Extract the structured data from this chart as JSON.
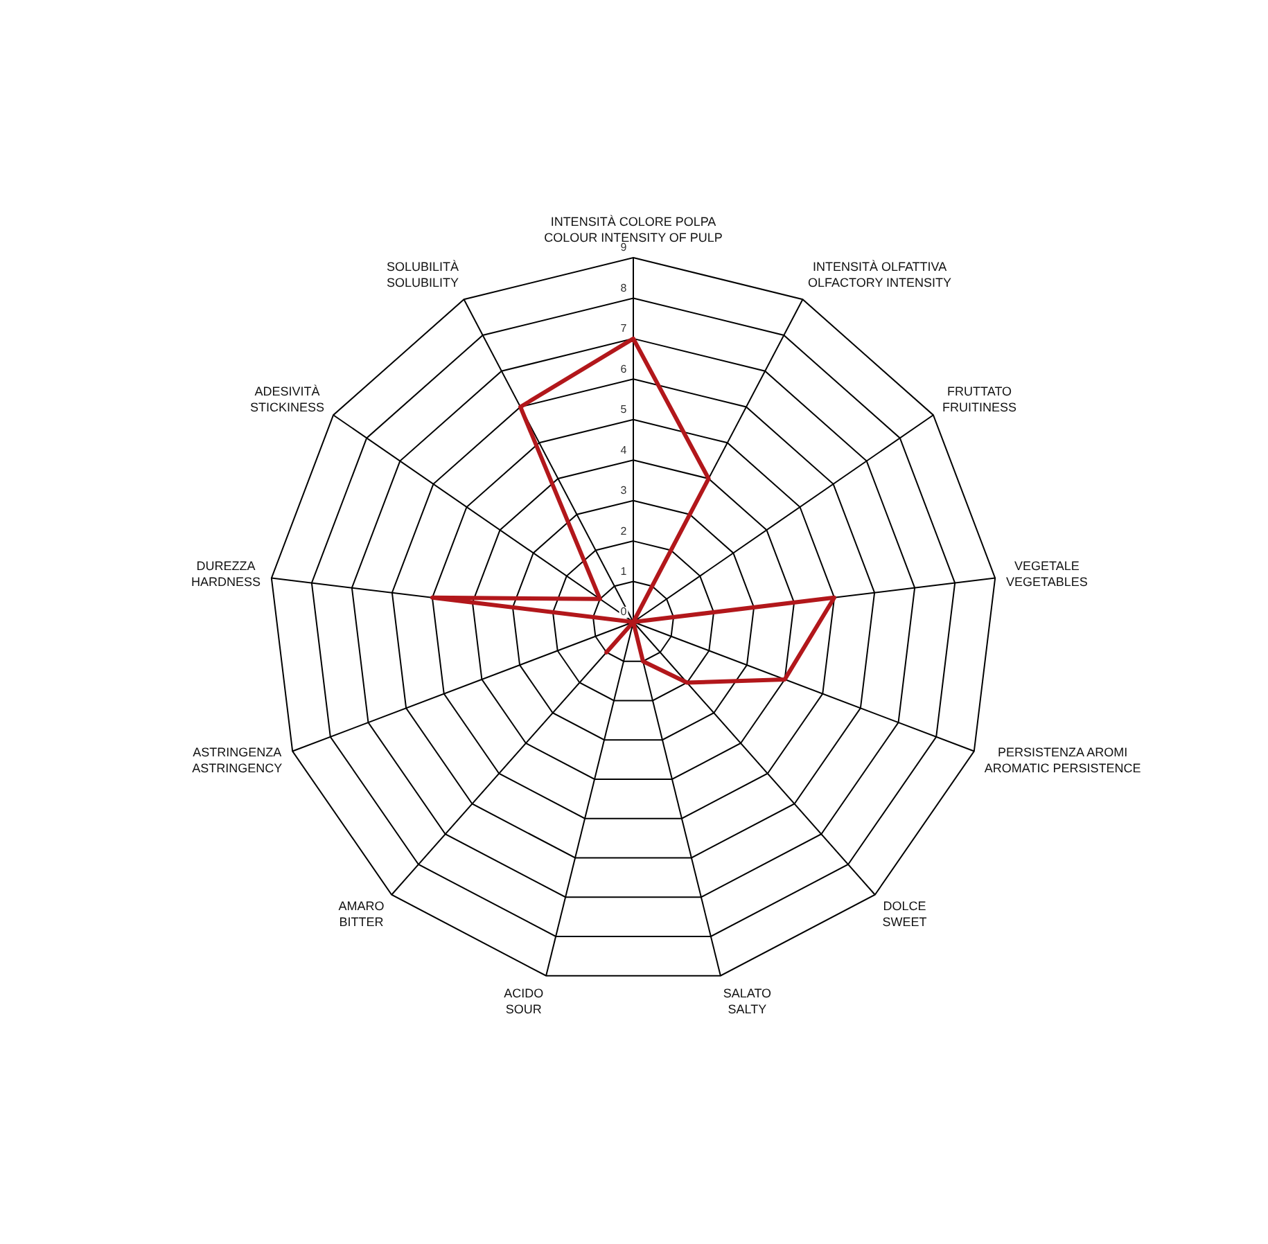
{
  "chart_data": {
    "type": "radar",
    "categories": [
      "INTENSITÀ COLORE POLPA\nCOLOUR INTENSITY OF PULP",
      "INTENSITÀ OLFATTIVA\nOLFACTORY INTENSITY",
      "FRUTTATO\nFRUITINESS",
      "VEGETALE\nVEGETABLES",
      "PERSISTENZA AROMI\nAROMATIC PERSISTENCE",
      "DOLCE\nSWEET",
      "SALATO\nSALTY",
      "ACIDO\nSOUR",
      "AMARO\nBITTER",
      "ASTRINGENZA\nASTRINGENCY",
      "DUREZZA\nHARDNESS",
      "ADESIVITÀ\nSTICKINESS",
      "SOLUBILITÀ\nSOLUBILITY"
    ],
    "series": [
      {
        "color": "#b2171b",
        "values": [
          7,
          4,
          0,
          5,
          4,
          2,
          1,
          0,
          1,
          0,
          5,
          1,
          6
        ]
      }
    ],
    "ylim": [
      0,
      9
    ],
    "yticks": [
      0,
      1,
      2,
      3,
      4,
      5,
      6,
      7,
      8,
      9
    ],
    "grid": true,
    "legend": false,
    "marker": "none",
    "line_style": "solid"
  }
}
